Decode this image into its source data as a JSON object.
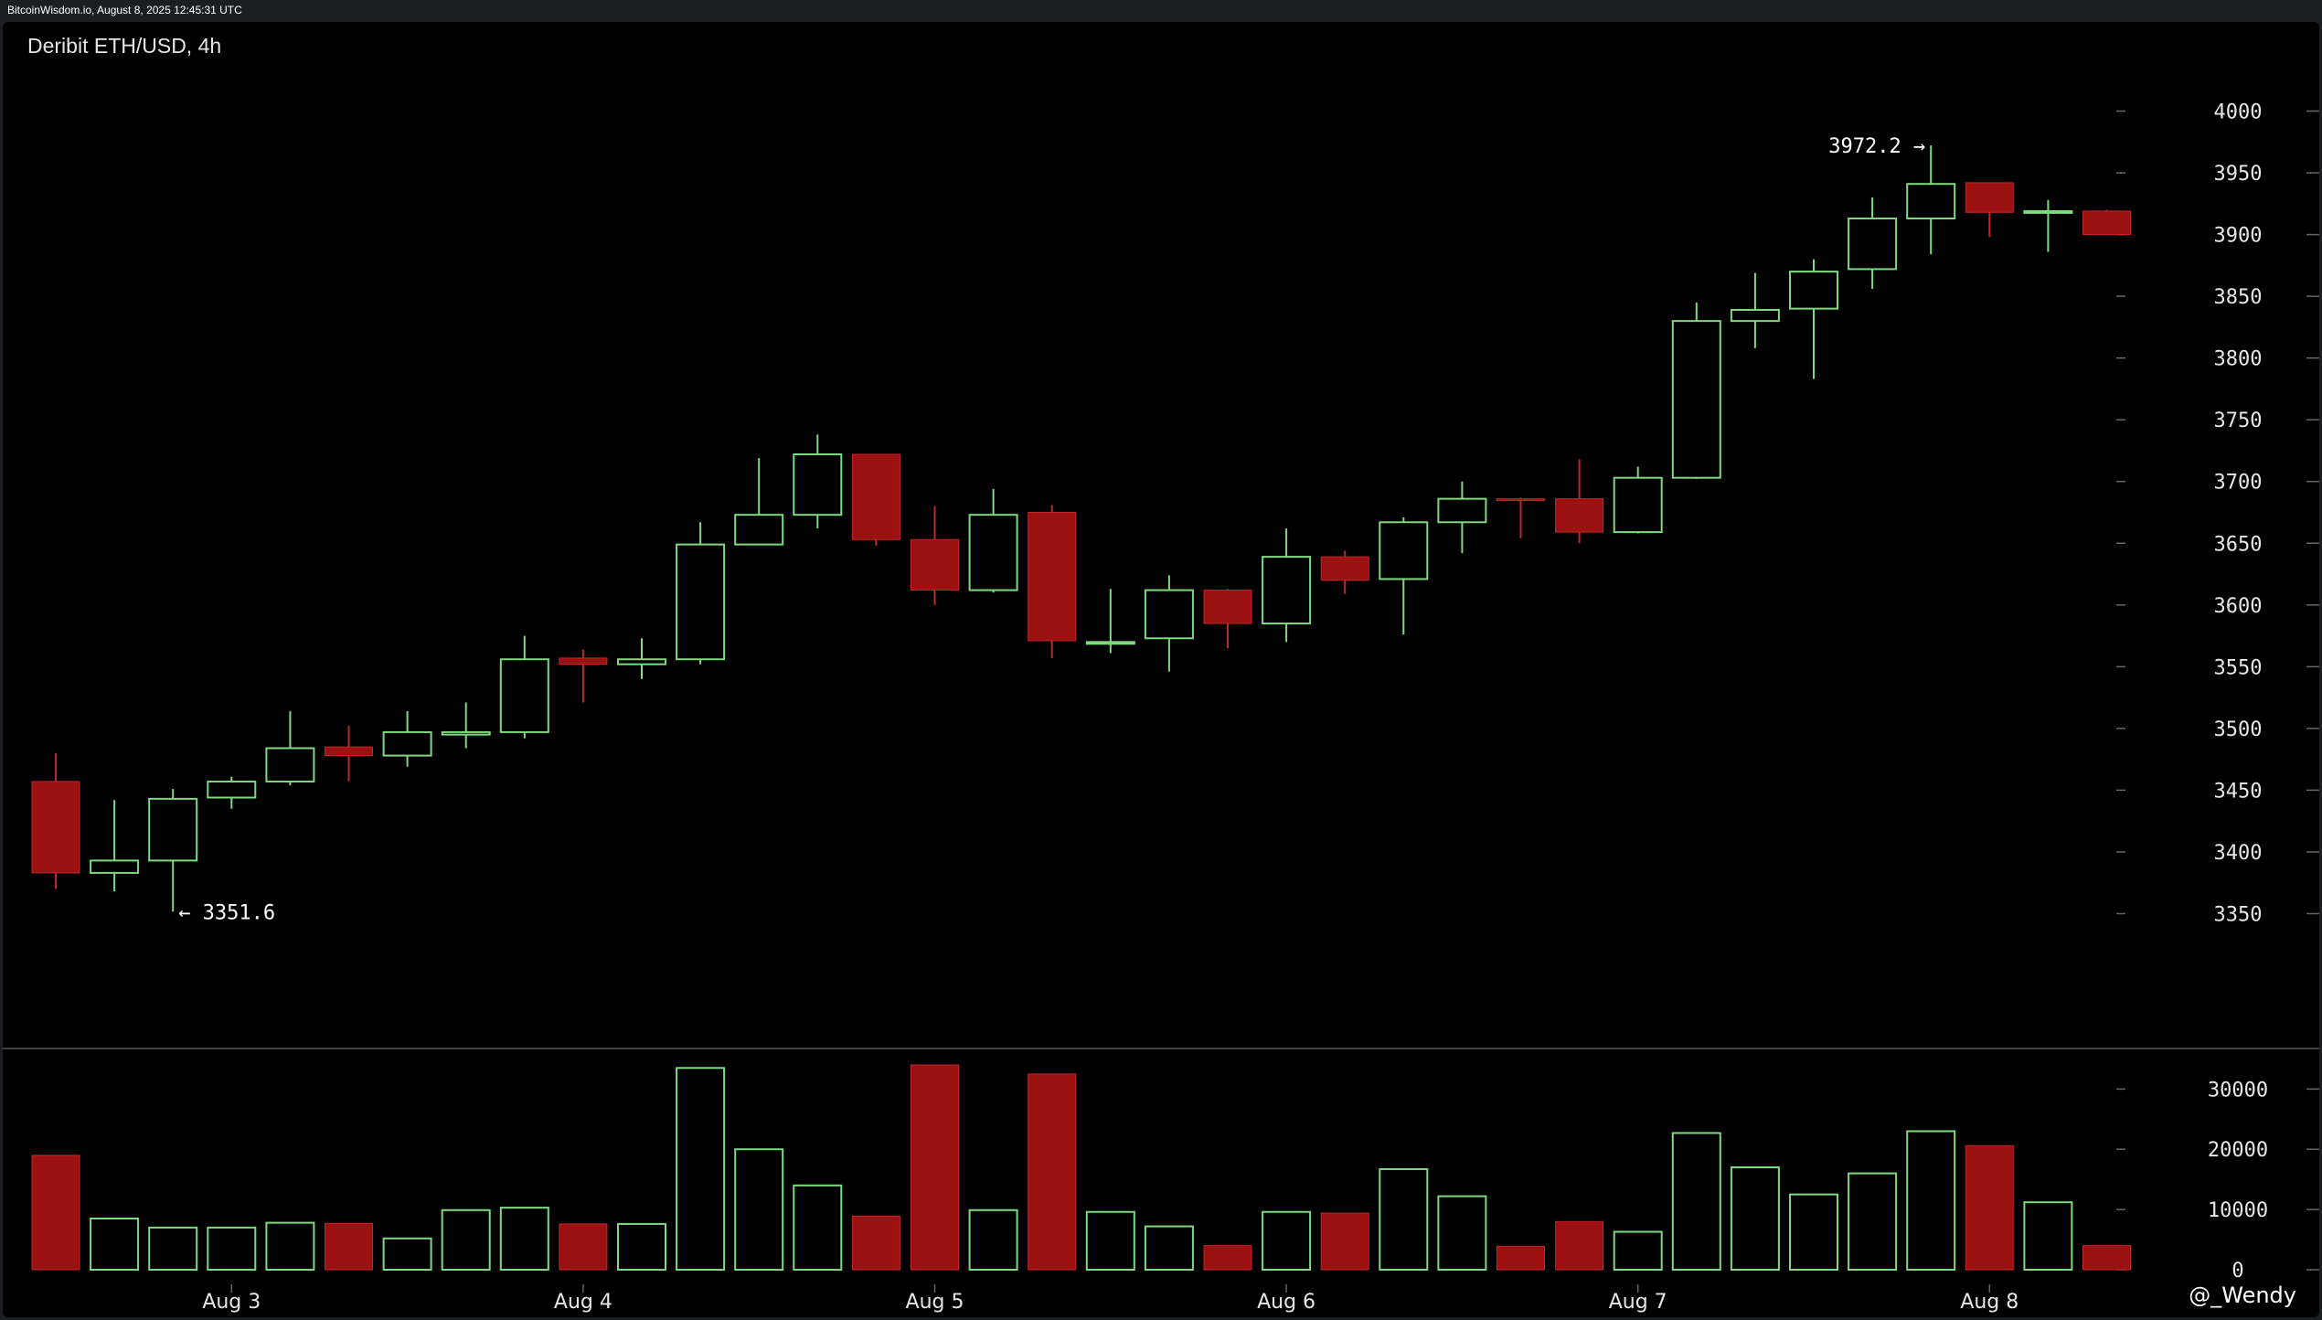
{
  "header": {
    "source_text": "BitcoinWisdom.io, August 8, 2025 12:45:31 UTC"
  },
  "chart": {
    "title": "Deribit ETH/USD, 4h",
    "watermark": "@_Wendy"
  },
  "colors": {
    "background": "#000000",
    "bull": "#7fd97f",
    "bear": "#9b1010",
    "text": "#e6e6e6",
    "separator": "#555555"
  },
  "chart_data": {
    "type": "candlestick",
    "title": "Deribit ETH/USD, 4h",
    "x_labels": [
      "Aug 3",
      "Aug 4",
      "Aug 5",
      "Aug 6",
      "Aug 7",
      "Aug 8"
    ],
    "x_label_positions": [
      3,
      9,
      15,
      21,
      27,
      33
    ],
    "price_axis": {
      "ticks": [
        3350,
        3400,
        3450,
        3500,
        3550,
        3600,
        3650,
        3700,
        3750,
        3800,
        3850,
        3900,
        3950,
        4000
      ],
      "range": [
        3300,
        4030
      ]
    },
    "volume_axis": {
      "ticks": [
        0,
        10000,
        20000,
        30000
      ],
      "range": [
        0,
        34000
      ]
    },
    "annotations": [
      {
        "text": "3972.2 →",
        "price": 3972.2,
        "candle": 32,
        "side": "left"
      },
      {
        "text": "← 3351.6",
        "price": 3351.6,
        "candle": 2,
        "side": "right"
      }
    ],
    "candles": [
      {
        "o": 3457,
        "h": 3480,
        "l": 3370,
        "c": 3383,
        "v": 19000
      },
      {
        "o": 3383,
        "h": 3442,
        "l": 3368,
        "c": 3393,
        "v": 8500
      },
      {
        "o": 3393,
        "h": 3451,
        "l": 3351.6,
        "c": 3443,
        "v": 7000
      },
      {
        "o": 3444,
        "h": 3461,
        "l": 3435,
        "c": 3457,
        "v": 7000
      },
      {
        "o": 3457,
        "h": 3514,
        "l": 3454,
        "c": 3484,
        "v": 7800
      },
      {
        "o": 3485,
        "h": 3502,
        "l": 3457,
        "c": 3478,
        "v": 7700
      },
      {
        "o": 3478,
        "h": 3514,
        "l": 3469,
        "c": 3497,
        "v": 5200
      },
      {
        "o": 3495,
        "h": 3521,
        "l": 3484,
        "c": 3497,
        "v": 9900
      },
      {
        "o": 3497,
        "h": 3575,
        "l": 3492,
        "c": 3556,
        "v": 10300
      },
      {
        "o": 3557,
        "h": 3564,
        "l": 3521,
        "c": 3552,
        "v": 7600
      },
      {
        "o": 3552,
        "h": 3573,
        "l": 3540,
        "c": 3556,
        "v": 7600
      },
      {
        "o": 3556,
        "h": 3667,
        "l": 3552,
        "c": 3649,
        "v": 33500
      },
      {
        "o": 3649,
        "h": 3719,
        "l": 3649,
        "c": 3673,
        "v": 20000
      },
      {
        "o": 3673,
        "h": 3738,
        "l": 3662,
        "c": 3722,
        "v": 14000
      },
      {
        "o": 3722,
        "h": 3722,
        "l": 3648,
        "c": 3653,
        "v": 8900
      },
      {
        "o": 3653,
        "h": 3680,
        "l": 3600,
        "c": 3612,
        "v": 34000
      },
      {
        "o": 3612,
        "h": 3694,
        "l": 3610,
        "c": 3673,
        "v": 9900
      },
      {
        "o": 3675,
        "h": 3681,
        "l": 3557,
        "c": 3571,
        "v": 32500
      },
      {
        "o": 3570,
        "h": 3613,
        "l": 3561,
        "c": 3570,
        "v": 9600
      },
      {
        "o": 3573,
        "h": 3624,
        "l": 3546,
        "c": 3612,
        "v": 7200
      },
      {
        "o": 3612,
        "h": 3613,
        "l": 3565,
        "c": 3585,
        "v": 4000
      },
      {
        "o": 3585,
        "h": 3662,
        "l": 3570,
        "c": 3639,
        "v": 9600
      },
      {
        "o": 3639,
        "h": 3644,
        "l": 3609,
        "c": 3620,
        "v": 9400
      },
      {
        "o": 3621,
        "h": 3671,
        "l": 3576,
        "c": 3667,
        "v": 16700
      },
      {
        "o": 3667,
        "h": 3700,
        "l": 3642,
        "c": 3686,
        "v": 12200
      },
      {
        "o": 3686,
        "h": 3687,
        "l": 3654,
        "c": 3685,
        "v": 3900
      },
      {
        "o": 3686,
        "h": 3718,
        "l": 3650,
        "c": 3659,
        "v": 8000
      },
      {
        "o": 3659,
        "h": 3712,
        "l": 3658,
        "c": 3703,
        "v": 6300
      },
      {
        "o": 3703,
        "h": 3845,
        "l": 3702,
        "c": 3830,
        "v": 22700
      },
      {
        "o": 3830,
        "h": 3869,
        "l": 3808,
        "c": 3839,
        "v": 17000
      },
      {
        "o": 3840,
        "h": 3880,
        "l": 3783,
        "c": 3870,
        "v": 12500
      },
      {
        "o": 3872,
        "h": 3930,
        "l": 3856,
        "c": 3913,
        "v": 16000
      },
      {
        "o": 3913,
        "h": 3972.2,
        "l": 3884,
        "c": 3941,
        "v": 23000
      },
      {
        "o": 3942,
        "h": 3942,
        "l": 3898,
        "c": 3918,
        "v": 20600
      },
      {
        "o": 3918,
        "h": 3928,
        "l": 3886,
        "c": 3919,
        "v": 11200
      },
      {
        "o": 3919,
        "h": 3920,
        "l": 3900,
        "c": 3900,
        "v": 4000
      }
    ]
  }
}
